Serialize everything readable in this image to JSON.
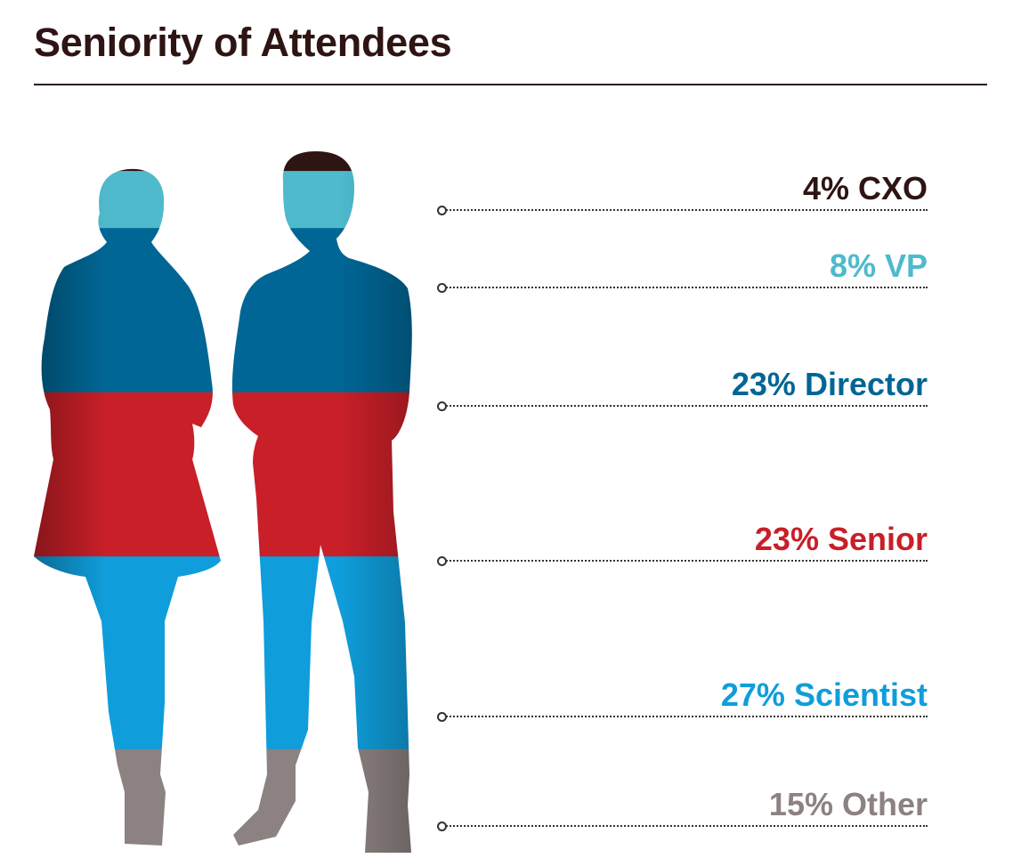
{
  "title": "Seniority of Attendees",
  "chart_data": {
    "type": "stacked-pictograph",
    "categories": [
      "CXO",
      "VP",
      "Director",
      "Senior",
      "Scientist",
      "Other"
    ],
    "values": [
      4,
      8,
      23,
      23,
      27,
      15
    ],
    "unit": "%",
    "labels": [
      "4% CXO",
      "8% VP",
      "23% Director",
      "23% Senior",
      "27% Scientist",
      "15% Other"
    ],
    "colors": [
      "#2e1413",
      "#4ebacc",
      "#006695",
      "#c81f28",
      "#0f9ddb",
      "#8c8281"
    ]
  }
}
